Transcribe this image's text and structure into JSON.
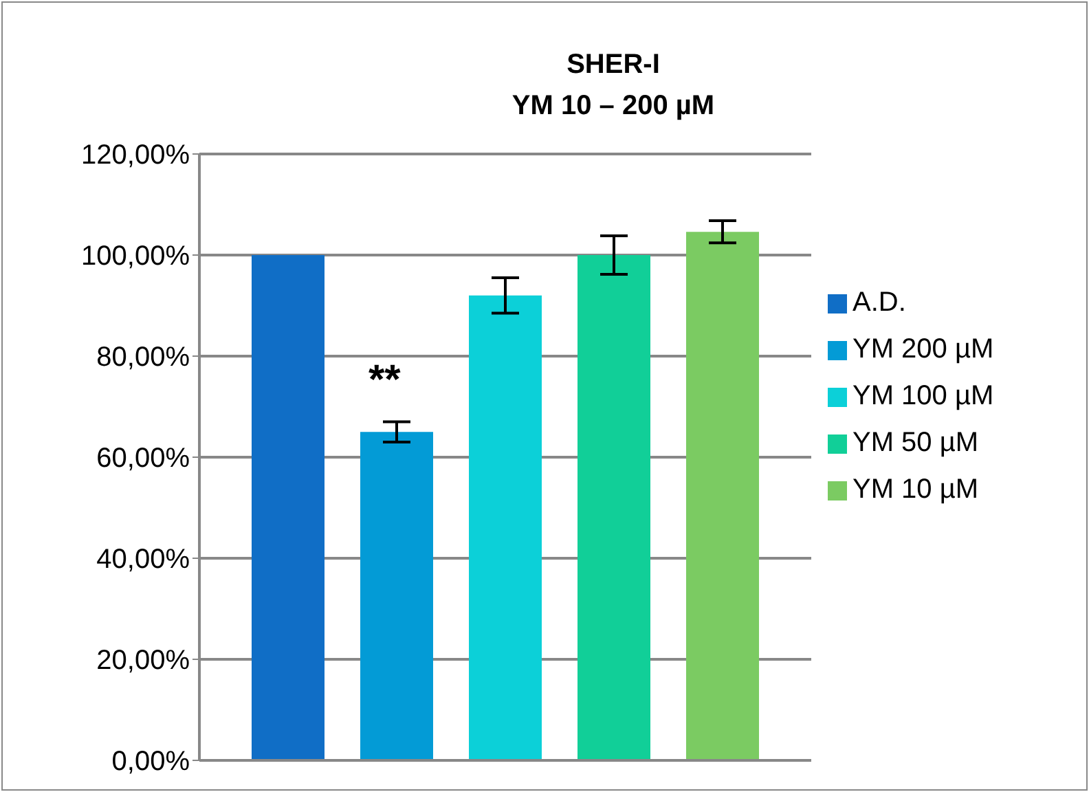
{
  "chart_data": {
    "type": "bar",
    "title": "SHER-I\nYM 10 – 200 µM",
    "categories": [
      null
    ],
    "series": [
      {
        "name": "A.D.",
        "color": "#106ec6",
        "values": [
          100
        ]
      },
      {
        "name": "YM 200 µM",
        "color": "#039bd6",
        "values": [
          65
        ],
        "errors": [
          2
        ]
      },
      {
        "name": "YM 100 µM",
        "color": "#0cd0d8",
        "values": [
          92
        ],
        "errors": [
          3.5
        ]
      },
      {
        "name": "YM 50 µM",
        "color": "#11cf98",
        "values": [
          100
        ],
        "errors": [
          3.8
        ]
      },
      {
        "name": "YM 10 µM",
        "color": "#7bcb62",
        "values": [
          104.6
        ],
        "errors": [
          2.2
        ]
      }
    ],
    "ylim": [
      0,
      120
    ],
    "yticks": [
      {
        "value": 0,
        "label": "0,00%"
      },
      {
        "value": 20,
        "label": "20,00%"
      },
      {
        "value": 40,
        "label": "40,00%"
      },
      {
        "value": 60,
        "label": "60,00%"
      },
      {
        "value": 80,
        "label": "80,00%"
      },
      {
        "value": 100,
        "label": "100,00%"
      },
      {
        "value": 120,
        "label": "120,00%"
      }
    ],
    "grid": "y",
    "legend": "right",
    "annotations": [
      "**"
    ]
  }
}
